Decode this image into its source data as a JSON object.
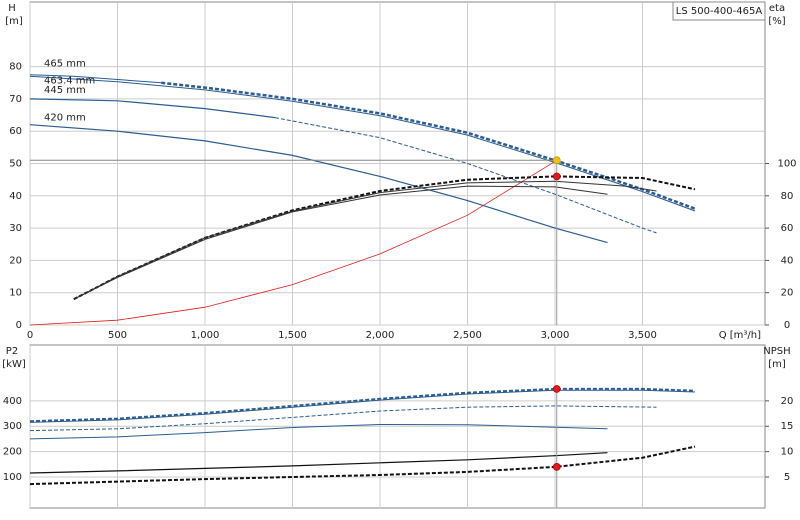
{
  "chart_data": [
    {
      "type": "line",
      "title": "LS 500-400-465A",
      "ylabel": "H",
      "yunit": "[m]",
      "y2label": "eta",
      "y2unit": "[%]",
      "xlabel": "Q [m³/h]",
      "xlim": [
        0,
        4200
      ],
      "ylim": [
        0,
        100
      ],
      "y2lim": [
        0,
        200
      ],
      "xticks": [
        0,
        500,
        {
          "value": 1000,
          "label": "1,000"
        },
        {
          "value": 1500,
          "label": "1,500"
        },
        {
          "value": 2000,
          "label": "2,000"
        },
        {
          "value": 2500,
          "label": "2,500"
        },
        {
          "value": 3000,
          "label": "3,000"
        },
        {
          "value": 3500,
          "label": "3,500"
        }
      ],
      "yticks": [
        0,
        10,
        20,
        30,
        40,
        50,
        60,
        70,
        80
      ],
      "y2ticks": [
        0,
        20,
        40,
        60,
        80,
        100
      ],
      "grid": true,
      "xtick_labels": true,
      "series": [
        {
          "name": "465 mm",
          "color": "#2b5c92",
          "width": 1,
          "dash": false,
          "x": [
            0,
            250,
            500,
            750
          ],
          "values": [
            77.5,
            77,
            76,
            75
          ]
        },
        {
          "color": "#2b5c92",
          "width": 2.5,
          "dash": true,
          "x": [
            750,
            1000,
            1500,
            2000,
            2500,
            3000,
            3500,
            3800
          ],
          "values": [
            75,
            73.5,
            70,
            65.5,
            59.5,
            51,
            42,
            36
          ]
        },
        {
          "name": "463.4 mm",
          "color": "#2b5c92",
          "width": 1,
          "dash": false,
          "x": [
            0,
            500,
            1000,
            1500,
            2000,
            2500,
            3000,
            3500,
            3800
          ],
          "values": [
            77,
            75.3,
            72.8,
            69.3,
            64.8,
            58.8,
            50.3,
            41.3,
            35.3
          ]
        },
        {
          "name": "445 mm",
          "color": "#2b5c92",
          "width": 1.2,
          "dash": false,
          "x": [
            0,
            500,
            1000,
            1400
          ],
          "values": [
            70,
            69.4,
            67,
            64.2
          ]
        },
        {
          "color": "#2b5c92",
          "width": 1,
          "dash": true,
          "x": [
            1400,
            2000,
            2500,
            3000,
            3500,
            3580
          ],
          "values": [
            64.2,
            58,
            50,
            40.5,
            30,
            28.5
          ]
        },
        {
          "name": "420 mm",
          "color": "#2b5c92",
          "width": 1.2,
          "dash": false,
          "x": [
            0,
            500,
            1000,
            1500,
            2000,
            2500,
            3000,
            3300
          ],
          "values": [
            62,
            60,
            57,
            52.5,
            46,
            38.5,
            30,
            25.5
          ]
        },
        {
          "color": "#e31a1c",
          "width": 0.8,
          "dash": false,
          "x": [
            0,
            500,
            1000,
            1500,
            2000,
            2500,
            3010
          ],
          "values": [
            0,
            1.5,
            5.5,
            12.5,
            22,
            34,
            51
          ]
        },
        {
          "color": "#111111",
          "width": 2,
          "dash": true,
          "axis": "y2",
          "x": [
            250,
            500,
            1000,
            1500,
            2000,
            2500,
            3000,
            3500,
            3800
          ],
          "values": [
            16,
            30,
            54,
            71,
            83,
            90,
            92,
            91,
            84
          ]
        },
        {
          "color": "#333333",
          "width": 1,
          "dash": false,
          "axis": "y2",
          "x": [
            250,
            500,
            1000,
            1500,
            2000,
            2500,
            3000,
            3400,
            3580
          ],
          "values": [
            16,
            30,
            54,
            70.5,
            82,
            88,
            89,
            86,
            83
          ]
        },
        {
          "color": "#333333",
          "width": 1,
          "dash": false,
          "axis": "y2",
          "x": [
            250,
            500,
            1000,
            1500,
            2000,
            2500,
            3000,
            3300
          ],
          "values": [
            16,
            29.5,
            53,
            70,
            80.5,
            86,
            85.5,
            81
          ]
        },
        {
          "color": "#f5c400",
          "marker": true,
          "guide": true,
          "x": [
            3010
          ],
          "values": [
            51
          ]
        },
        {
          "color": "#e31a1c",
          "marker": true,
          "axis": "y2",
          "x": [
            3010
          ],
          "values": [
            92
          ]
        }
      ]
    },
    {
      "type": "line",
      "ylabel": "P2",
      "yunit": "[kW]",
      "y2label": "NPSH",
      "y2unit": "[m]",
      "xlim": [
        0,
        4200
      ],
      "ylim": [
        -22,
        620
      ],
      "y2lim": [
        -1.1,
        31
      ],
      "xticks": [
        0,
        500,
        1000,
        1500,
        2000,
        2500,
        3000,
        3500
      ],
      "yticks": [
        100,
        200,
        300,
        400
      ],
      "y2ticks": [
        5,
        10,
        15,
        20
      ],
      "grid": true,
      "xtick_labels": false,
      "series": [
        {
          "color": "#2b5c92",
          "width": 2,
          "dash": true,
          "x": [
            0,
            500,
            1000,
            1500,
            2000,
            2500,
            3000,
            3500,
            3800
          ],
          "values": [
            320,
            330,
            352,
            380,
            408,
            432,
            447,
            447,
            440
          ]
        },
        {
          "color": "#2b5c92",
          "width": 1,
          "dash": false,
          "x": [
            0,
            500,
            1000,
            1500,
            2000,
            2500,
            3000,
            3500,
            3800
          ],
          "values": [
            315,
            325,
            347,
            375,
            403,
            427,
            442,
            442,
            435
          ]
        },
        {
          "color": "#2b5c92",
          "width": 1,
          "dash": true,
          "x": [
            0,
            500,
            1000,
            1500,
            2000,
            2500,
            3000,
            3580
          ],
          "values": [
            283,
            290,
            310,
            335,
            360,
            375,
            380,
            375
          ]
        },
        {
          "color": "#2b5c92",
          "width": 1,
          "dash": false,
          "x": [
            0,
            500,
            1000,
            1500,
            2000,
            2500,
            3000,
            3300
          ],
          "values": [
            250,
            258,
            275,
            295,
            307,
            306,
            296,
            290
          ]
        },
        {
          "color": "#111111",
          "width": 2,
          "dash": true,
          "axis": "y2",
          "x": [
            0,
            500,
            1000,
            1500,
            2000,
            2500,
            3000,
            3500,
            3800
          ],
          "values": [
            3.6,
            4.1,
            4.6,
            5,
            5.4,
            6,
            7,
            8.8,
            11
          ]
        },
        {
          "color": "#111111",
          "width": 1.2,
          "dash": false,
          "axis": "y2",
          "x": [
            0,
            500,
            1000,
            1500,
            2000,
            2500,
            3000,
            3300
          ],
          "values": [
            5.8,
            6.2,
            6.7,
            7.2,
            7.8,
            8.4,
            9.2,
            9.8
          ]
        },
        {
          "color": "#e31a1c",
          "marker": true,
          "guide": true,
          "x": [
            3010
          ],
          "values": [
            447
          ]
        },
        {
          "color": "#e31a1c",
          "marker": true,
          "axis": "y2",
          "x": [
            3010
          ],
          "values": [
            7
          ]
        }
      ]
    }
  ]
}
